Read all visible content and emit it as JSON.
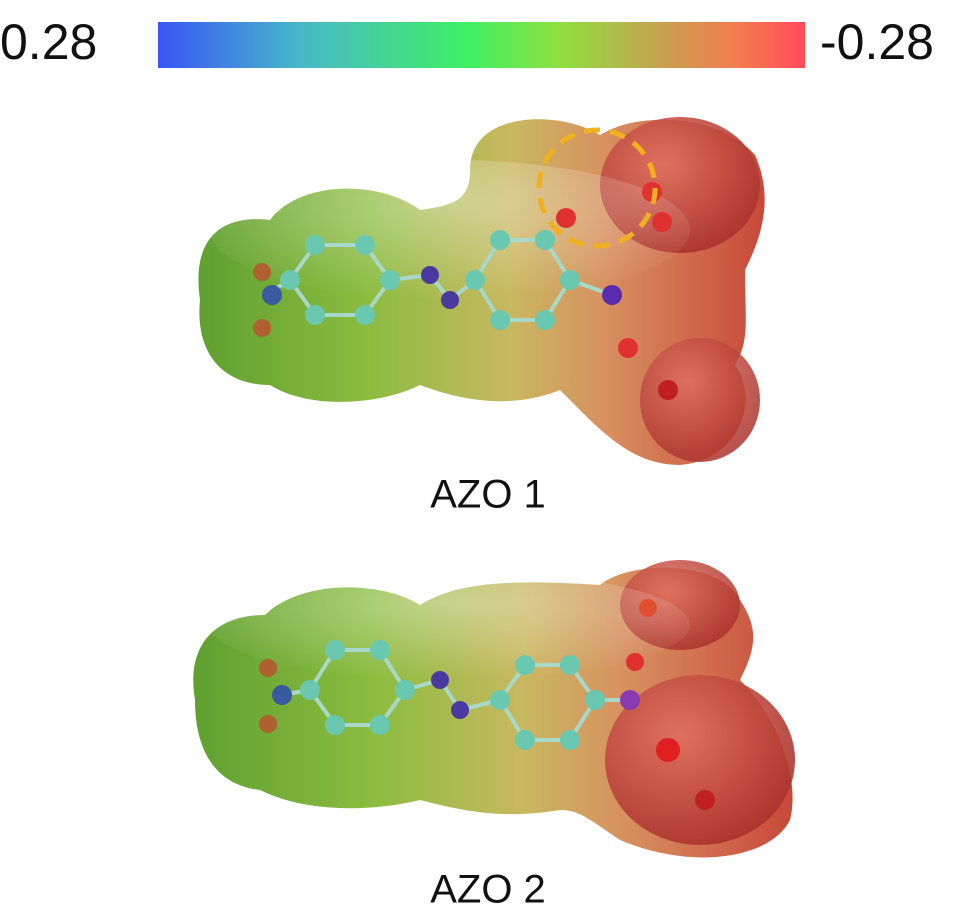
{
  "colorbar": {
    "left_label": "0.28",
    "right_label": "-0.28"
  },
  "panels": [
    {
      "label": "AZO 1"
    },
    {
      "label": "AZO 2"
    }
  ]
}
